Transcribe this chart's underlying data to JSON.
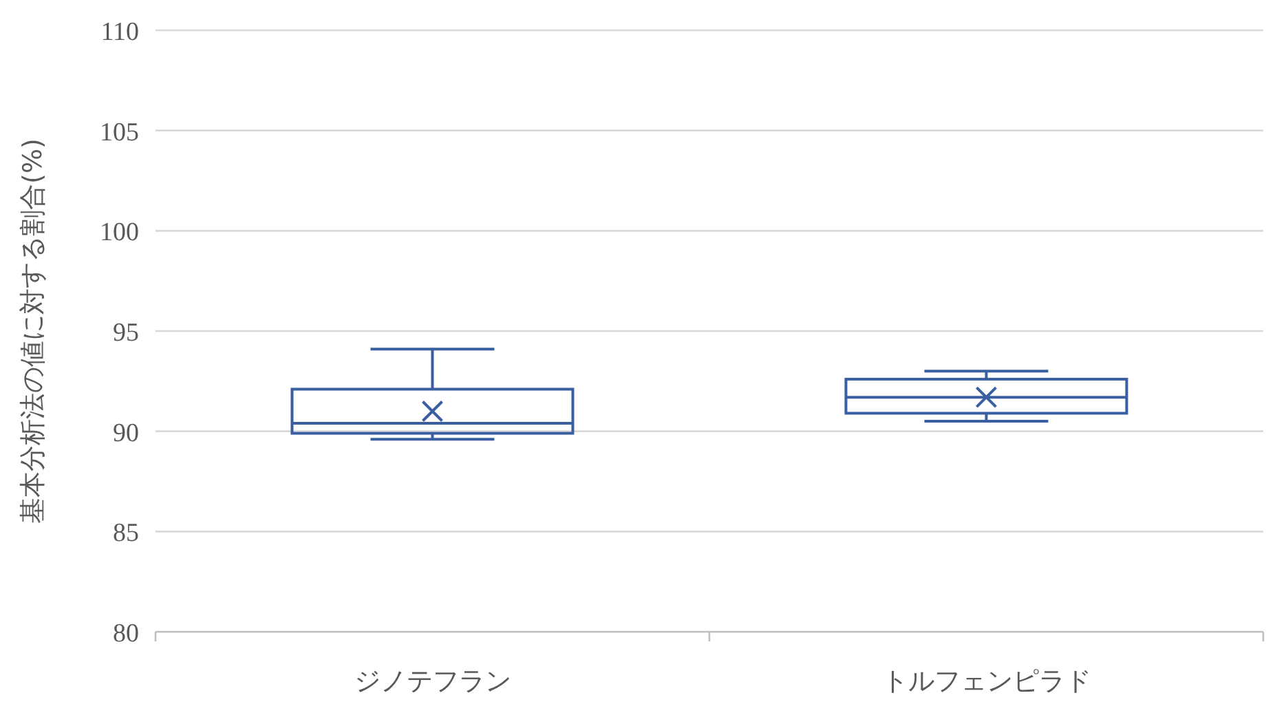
{
  "chart_data": {
    "type": "box",
    "ylabel": "基本分析法の値に対する割合(%)",
    "categories": [
      "ジノテフラン",
      "トルフェンピラド"
    ],
    "ylim": [
      80,
      110
    ],
    "yticks": [
      80,
      85,
      90,
      95,
      100,
      105,
      110
    ],
    "grid": "y",
    "color": "#3a5fa0",
    "marker": "cross",
    "boxes": [
      {
        "low": 89.6,
        "q1": 89.9,
        "median": 90.4,
        "q3": 92.1,
        "high": 94.1,
        "mean": 91.0
      },
      {
        "low": 90.5,
        "q1": 90.9,
        "median": 91.7,
        "q3": 92.6,
        "high": 93.0,
        "mean": 91.7
      }
    ]
  }
}
